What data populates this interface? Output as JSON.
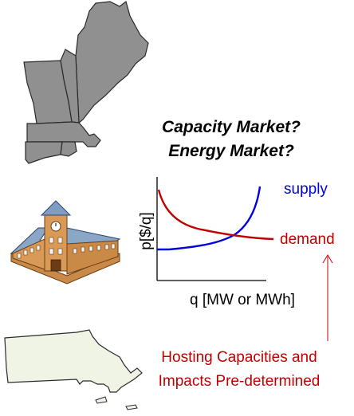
{
  "questions": {
    "line1": "Capacity Market?",
    "line2": "Energy Market?"
  },
  "chart": {
    "y_axis_label": "p[$/q]",
    "x_axis_label": "q [MW or MWh]",
    "supply_label": "supply",
    "demand_label": "demand",
    "supply_color": "#0000e0",
    "demand_color": "#c00000"
  },
  "note": {
    "line1": "Hosting Capacities and",
    "line2": "Impacts Pre-determined",
    "color": "#c00000"
  },
  "images": {
    "region_map": "new-england-map",
    "building": "town-hall-building",
    "state_map": "massachusetts-map"
  }
}
